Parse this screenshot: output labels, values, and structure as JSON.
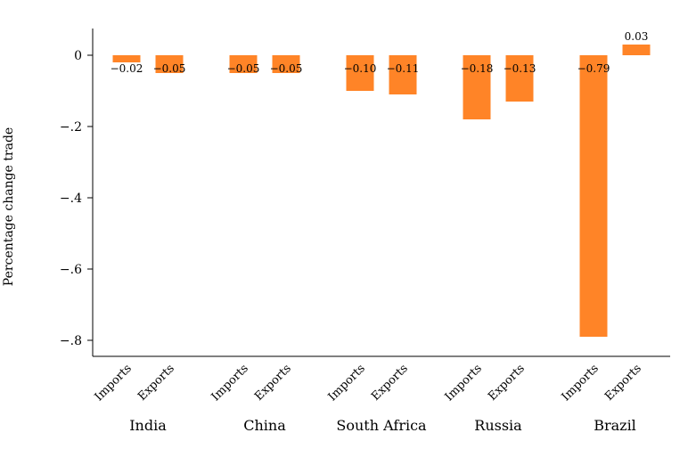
{
  "chart_data": {
    "type": "bar",
    "title": "",
    "ylabel": "Percentage change trade",
    "xlabel": "",
    "ylim": [
      -0.85,
      0.05
    ],
    "yticks": [
      {
        "value": 0,
        "label": "0"
      },
      {
        "value": -0.2,
        "label": "-.2"
      },
      {
        "value": -0.4,
        "label": "-.4"
      },
      {
        "value": -0.6,
        "label": "-.6"
      },
      {
        "value": -0.8,
        "label": "-.8"
      }
    ],
    "bar_color": "#ff8427",
    "groups": [
      {
        "name": "India",
        "bars": [
          {
            "category": "Imports",
            "value": -0.02,
            "label": "-0.02"
          },
          {
            "category": "Exports",
            "value": -0.05,
            "label": "-0.05"
          }
        ]
      },
      {
        "name": "China",
        "bars": [
          {
            "category": "Imports",
            "value": -0.05,
            "label": "-0.05"
          },
          {
            "category": "Exports",
            "value": -0.05,
            "label": "-0.05"
          }
        ]
      },
      {
        "name": "South Africa",
        "bars": [
          {
            "category": "Imports",
            "value": -0.1,
            "label": "-0.10"
          },
          {
            "category": "Exports",
            "value": -0.11,
            "label": "-0.11"
          }
        ]
      },
      {
        "name": "Russia",
        "bars": [
          {
            "category": "Imports",
            "value": -0.18,
            "label": "-0.18"
          },
          {
            "category": "Exports",
            "value": -0.13,
            "label": "-0.13"
          }
        ]
      },
      {
        "name": "Brazil",
        "bars": [
          {
            "category": "Imports",
            "value": -0.79,
            "label": "-0.79"
          },
          {
            "category": "Exports",
            "value": 0.03,
            "label": "0.03"
          }
        ]
      }
    ]
  }
}
